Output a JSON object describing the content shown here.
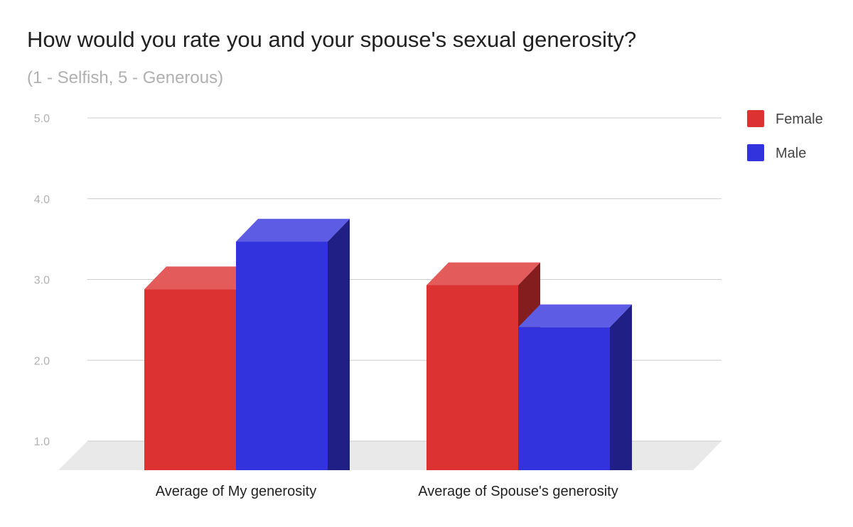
{
  "chart_data": {
    "type": "bar",
    "title": "How would you rate you and your spouse's sexual generosity?",
    "subtitle": "(1 - Selfish, 5 - Generous)",
    "categories": [
      "Average of My generosity",
      "Average of Spouse's generosity"
    ],
    "series": [
      {
        "name": "Female",
        "values": [
          3.24,
          3.29
        ],
        "color": "#dc3232"
      },
      {
        "name": "Male",
        "values": [
          3.83,
          2.77
        ],
        "color": "#3333dd"
      }
    ],
    "y_ticks": [
      "1.0",
      "2.0",
      "3.0",
      "4.0",
      "5.0"
    ],
    "ylim": [
      1,
      5
    ],
    "grid": true,
    "legend": "right",
    "style": "3d"
  }
}
